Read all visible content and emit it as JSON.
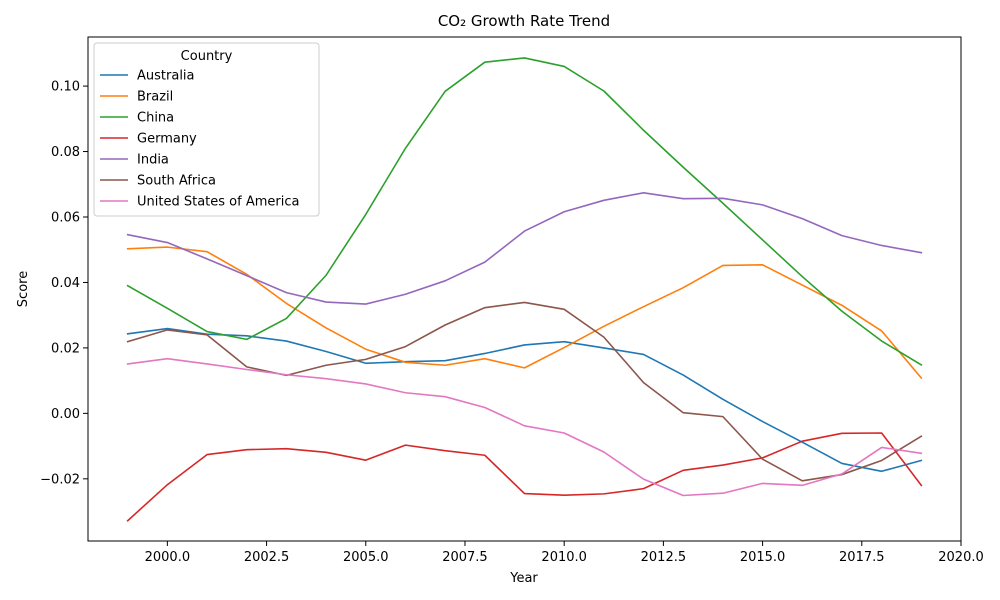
{
  "chart_data": {
    "type": "line",
    "title": "CO₂ Growth Rate Trend",
    "xlabel": "Year",
    "ylabel": "Score",
    "xlim": [
      1998,
      2020
    ],
    "ylim": [
      -0.039,
      0.115
    ],
    "x_ticks": [
      2000,
      2002.5,
      2005,
      2007.5,
      2010,
      2012.5,
      2015,
      2017.5,
      2020
    ],
    "x_tick_labels": [
      "2000.0",
      "2002.5",
      "2005.0",
      "2007.5",
      "2010.0",
      "2012.5",
      "2015.0",
      "2017.5",
      "2020.0"
    ],
    "y_ticks": [
      -0.02,
      0.0,
      0.02,
      0.04,
      0.06,
      0.08,
      0.1
    ],
    "y_tick_labels": [
      "−0.02",
      "0.00",
      "0.02",
      "0.04",
      "0.06",
      "0.08",
      "0.10"
    ],
    "grid": false,
    "legend": {
      "title": "Country",
      "placement": "top-left"
    },
    "x": [
      1999,
      2000,
      2001,
      2002,
      2003,
      2004,
      2005,
      2006,
      2007,
      2008,
      2009,
      2010,
      2011,
      2012,
      2013,
      2014,
      2015,
      2016,
      2017,
      2018,
      2019
    ],
    "series": [
      {
        "name": "Australia",
        "color": "#1f77b4",
        "values": [
          0.0243,
          0.0259,
          0.0242,
          0.0237,
          0.0221,
          0.0189,
          0.0153,
          0.0158,
          0.0161,
          0.0183,
          0.0209,
          0.0219,
          0.02,
          0.018,
          0.0117,
          0.0043,
          -0.0025,
          -0.0088,
          -0.0153,
          -0.0177,
          -0.0144
        ]
      },
      {
        "name": "Brazil",
        "color": "#ff7f0e",
        "values": [
          0.0503,
          0.0508,
          0.0494,
          0.0425,
          0.0336,
          0.0261,
          0.0196,
          0.0156,
          0.0147,
          0.0167,
          0.0139,
          0.0201,
          0.0266,
          0.0326,
          0.0384,
          0.0452,
          0.0454,
          0.0392,
          0.033,
          0.0252,
          0.0108
        ]
      },
      {
        "name": "China",
        "color": "#2ca02c",
        "values": [
          0.039,
          0.0321,
          0.025,
          0.0226,
          0.029,
          0.0422,
          0.0608,
          0.081,
          0.0984,
          0.1073,
          0.1086,
          0.106,
          0.0985,
          0.0865,
          0.0752,
          0.0642,
          0.053,
          0.0418,
          0.0312,
          0.0221,
          0.0148
        ]
      },
      {
        "name": "Germany",
        "color": "#d62728",
        "values": [
          -0.0328,
          -0.0218,
          -0.0126,
          -0.0111,
          -0.0108,
          -0.0119,
          -0.0143,
          -0.0097,
          -0.0114,
          -0.0128,
          -0.0245,
          -0.025,
          -0.0246,
          -0.023,
          -0.0174,
          -0.0158,
          -0.0136,
          -0.0085,
          -0.0061,
          -0.006,
          -0.022
        ]
      },
      {
        "name": "India",
        "color": "#9467bd",
        "values": [
          0.0546,
          0.0522,
          0.0472,
          0.0421,
          0.0369,
          0.034,
          0.0334,
          0.0364,
          0.0405,
          0.0462,
          0.0557,
          0.0616,
          0.0651,
          0.0674,
          0.0656,
          0.0657,
          0.0637,
          0.0595,
          0.0543,
          0.0513,
          0.0491
        ]
      },
      {
        "name": "South Africa",
        "color": "#8c564b",
        "values": [
          0.0219,
          0.0255,
          0.024,
          0.0142,
          0.0116,
          0.0147,
          0.0165,
          0.0204,
          0.027,
          0.0323,
          0.0339,
          0.0318,
          0.0233,
          0.0094,
          0.0002,
          -0.001,
          -0.014,
          -0.0206,
          -0.0187,
          -0.0144,
          -0.007
        ]
      },
      {
        "name": "United States of America",
        "color": "#e377c2",
        "values": [
          0.0151,
          0.0167,
          0.0151,
          0.0134,
          0.0118,
          0.0106,
          0.009,
          0.0063,
          0.0051,
          0.0018,
          -0.0038,
          -0.006,
          -0.0118,
          -0.0201,
          -0.0251,
          -0.0244,
          -0.0214,
          -0.022,
          -0.0185,
          -0.0104,
          -0.0122
        ]
      }
    ]
  }
}
